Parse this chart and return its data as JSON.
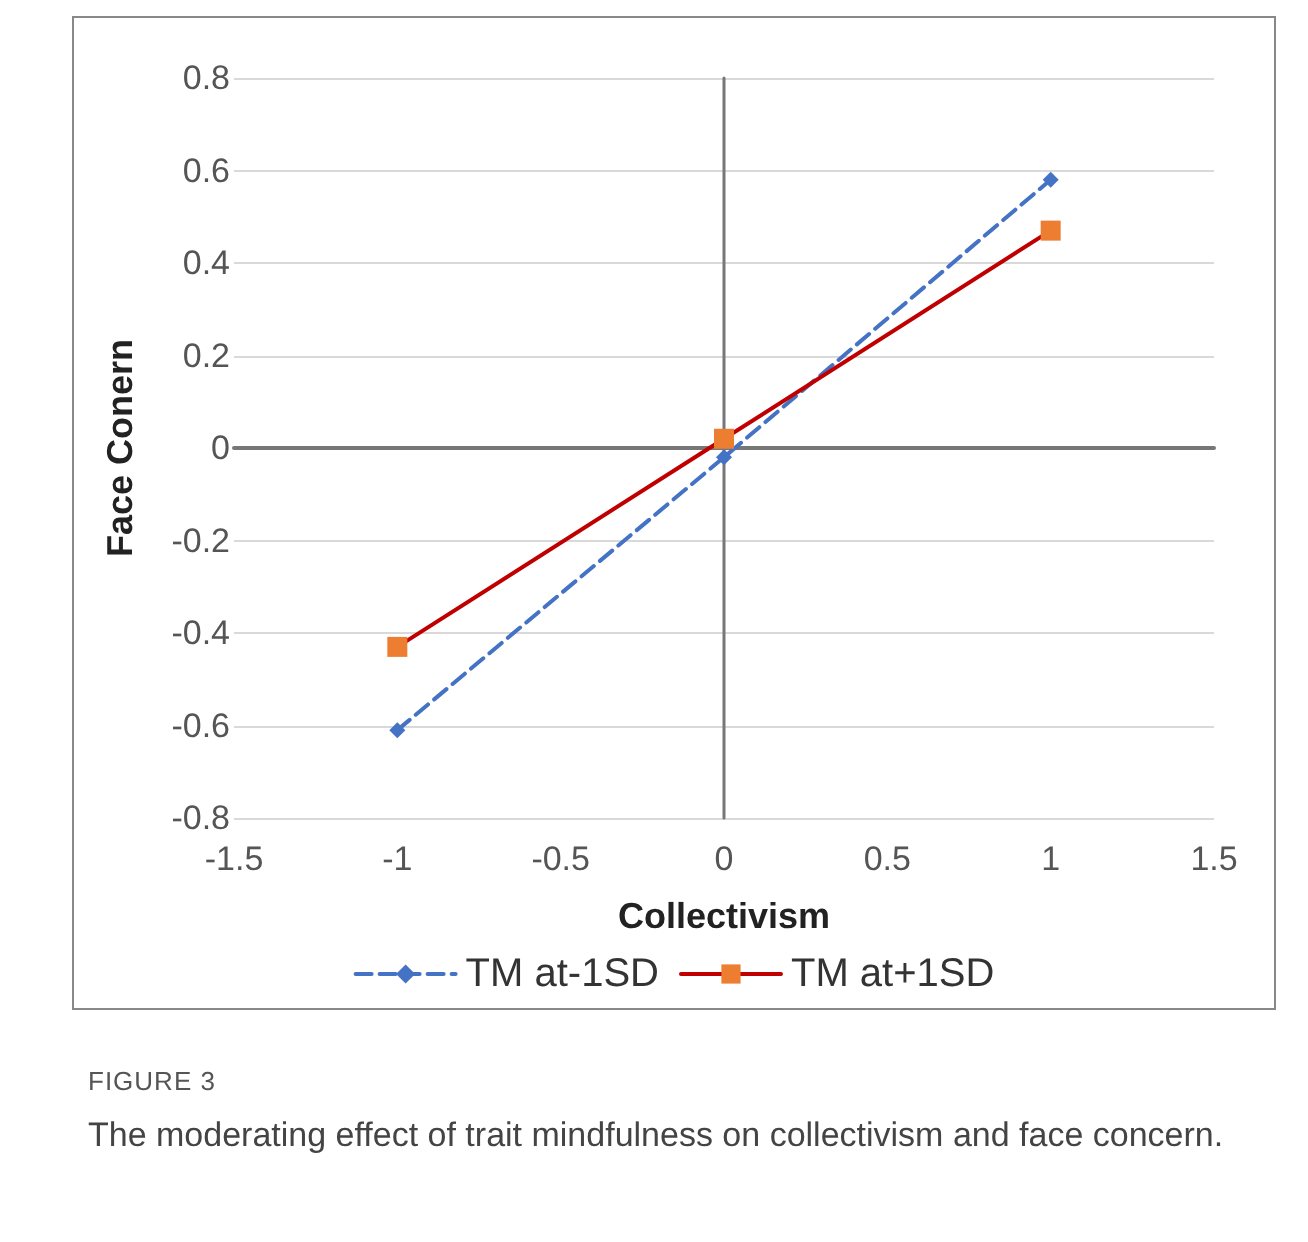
{
  "chart_data": {
    "type": "line",
    "title": "FIGURE 3",
    "xlabel": "Collectivism",
    "ylabel": "Face Conern",
    "annotations": [
      "The moderating effect of trait mindfulness on collectivism and face concern."
    ],
    "x": [
      -1,
      0,
      1
    ],
    "series": [
      {
        "name": "TM at-1SD",
        "color": "#4472c4",
        "colors": [
          "#4472c4",
          "#4472c4",
          "#4472c4"
        ],
        "marker": "diamond",
        "line_style": "dashed",
        "values": [
          -0.61,
          -0.02,
          0.58
        ]
      },
      {
        "name": "TM at+1SD",
        "color": "#c00000",
        "colors": [
          "#ed7d31",
          "#ed7d31",
          "#ed7d31"
        ],
        "marker": "square",
        "line_style": "solid",
        "values": [
          -0.43,
          0.02,
          0.47
        ]
      }
    ],
    "xlim": [
      -1.5,
      1.5
    ],
    "xticks": [
      -1.5,
      -1,
      -0.5,
      0,
      0.5,
      1,
      1.5
    ],
    "ylim": [
      -0.8,
      0.8
    ],
    "yticks": [
      -0.8,
      -0.6,
      -0.4,
      -0.2,
      0,
      0.2,
      0.4,
      0.6,
      0.8
    ],
    "grid": "y",
    "legend": "bottom"
  }
}
